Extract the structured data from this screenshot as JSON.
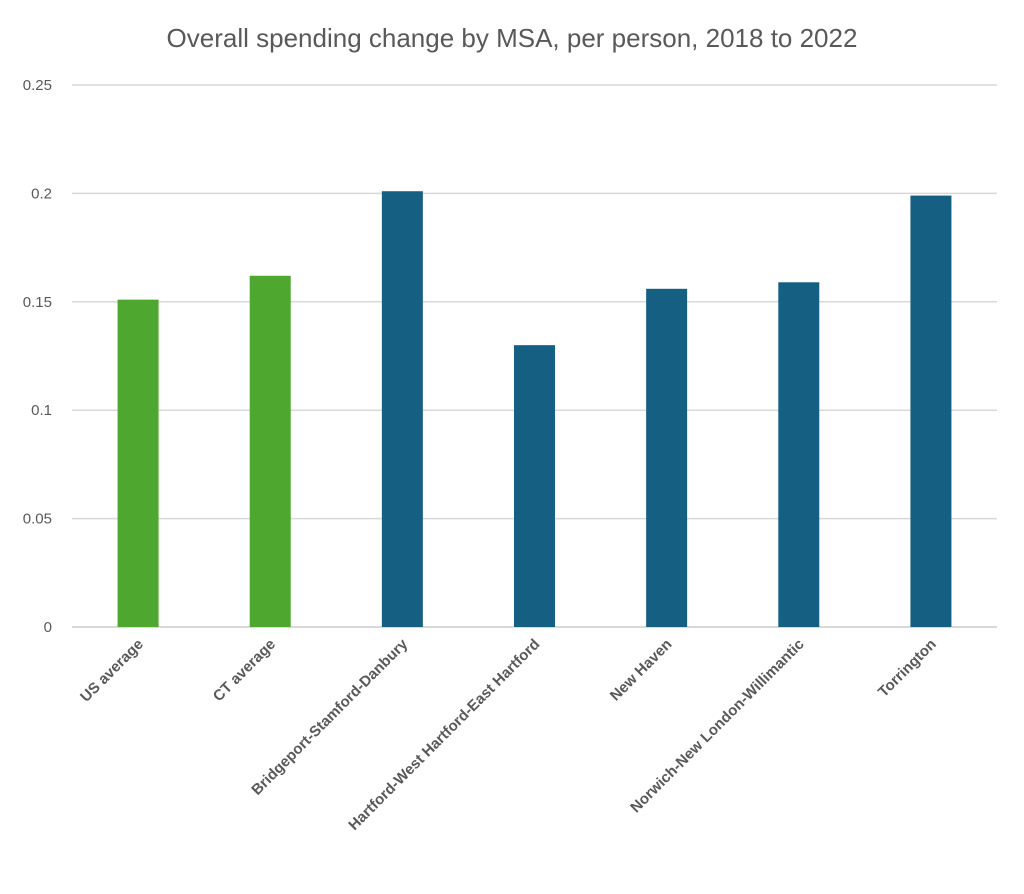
{
  "chart_data": {
    "type": "bar",
    "title": "Overall spending change by MSA, per person, 2018 to 2022",
    "xlabel": "",
    "ylabel": "",
    "ylim": [
      0,
      0.25
    ],
    "yticks": [
      0,
      0.05,
      0.1,
      0.15,
      0.2,
      0.25
    ],
    "ytick_labels": [
      "0",
      "0.05",
      "0.1",
      "0.15",
      "0.2",
      "0.25"
    ],
    "grid": true,
    "legend": "none",
    "categories": [
      "US average",
      "CT average",
      "Bridgeport-Stamford-Danbury",
      "Hartford-West Hartford-East Hartford",
      "New Haven",
      "Norwich-New London-Willimantic",
      "Torrington"
    ],
    "values": [
      0.151,
      0.162,
      0.201,
      0.13,
      0.156,
      0.159,
      0.199
    ],
    "bar_colors": [
      "#4ea72e",
      "#4ea72e",
      "#156082",
      "#156082",
      "#156082",
      "#156082",
      "#156082"
    ]
  }
}
